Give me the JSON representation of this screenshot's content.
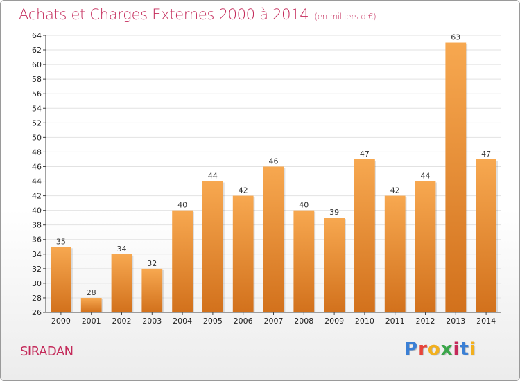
{
  "header": {
    "title": "Achats et Charges Externes 2000 à 2014",
    "subtitle": "(en milliers d'€)"
  },
  "footer": {
    "city": "SIRADAN",
    "logo_letters": [
      "P",
      "r",
      "o",
      "x",
      "i",
      "t",
      "i"
    ],
    "logo_colors": [
      "#3a7fd5",
      "#e8443a",
      "#f2b01e",
      "#3aa64a",
      "#c42a5a",
      "#3a7fd5",
      "#f2b01e"
    ]
  },
  "colors": {
    "title": "#c42a5a",
    "bar_light": "#f7a850",
    "bar_dark": "#d2711c",
    "grid": "#e2e2e2",
    "axis": "#444444"
  },
  "chart_data": {
    "type": "bar",
    "title": "Achats et Charges Externes 2000 à 2014",
    "subtitle": "(en milliers d'€)",
    "xlabel": "",
    "ylabel": "",
    "categories": [
      "2000",
      "2001",
      "2002",
      "2003",
      "2004",
      "2005",
      "2006",
      "2007",
      "2008",
      "2009",
      "2010",
      "2011",
      "2012",
      "2013",
      "2014"
    ],
    "values": [
      35,
      28,
      34,
      32,
      40,
      44,
      42,
      46,
      40,
      39,
      47,
      42,
      44,
      63,
      47
    ],
    "ylim": [
      26,
      64
    ],
    "yticks": [
      26,
      28,
      30,
      32,
      34,
      36,
      38,
      40,
      42,
      44,
      46,
      48,
      50,
      52,
      54,
      56,
      58,
      60,
      62,
      64
    ],
    "grid": true,
    "data_labels": true
  }
}
